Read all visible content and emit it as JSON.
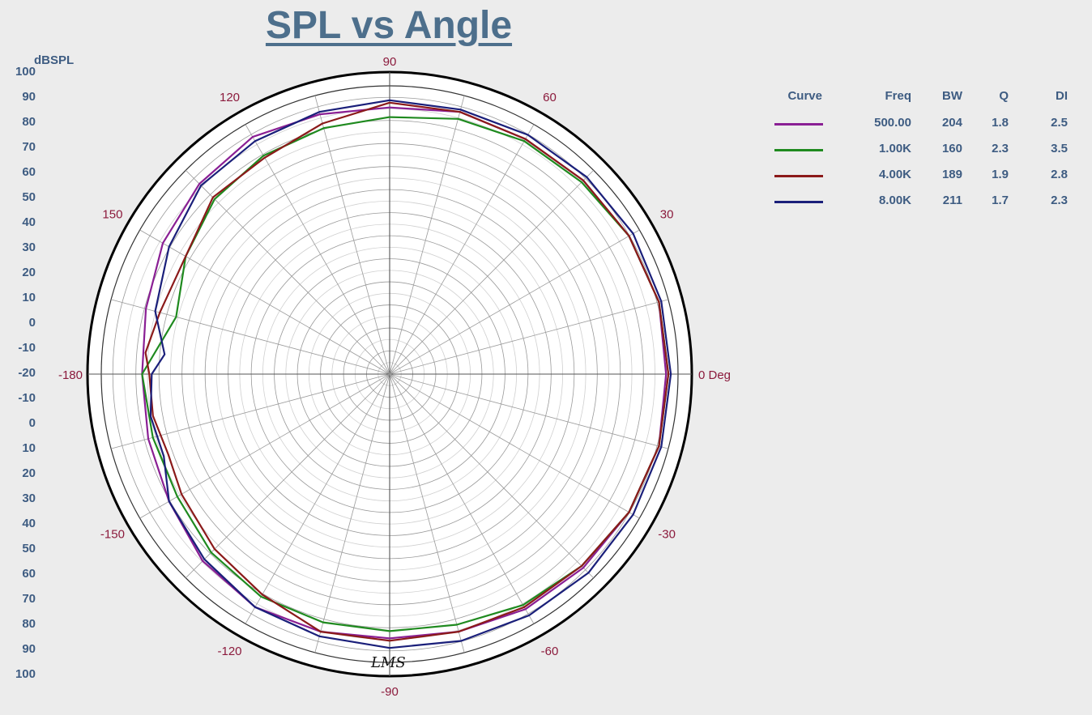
{
  "title": "SPL vs Angle",
  "radial_unit": "dBSPL",
  "radial_scale_top": [
    "100",
    "90",
    "80",
    "70",
    "60",
    "50",
    "40",
    "30",
    "20",
    "10",
    "0",
    "-10",
    "-20"
  ],
  "radial_scale_bottom": [
    "-10",
    "0",
    "10",
    "20",
    "30",
    "40",
    "50",
    "60",
    "70",
    "80",
    "90",
    "100"
  ],
  "angle_labels": [
    {
      "deg": 0,
      "text": "0 Deg"
    },
    {
      "deg": 30,
      "text": "30"
    },
    {
      "deg": 60,
      "text": "60"
    },
    {
      "deg": 90,
      "text": "90"
    },
    {
      "deg": 120,
      "text": "120"
    },
    {
      "deg": 150,
      "text": "150"
    },
    {
      "deg": 180,
      "text": "-180"
    },
    {
      "deg": -150,
      "text": "-150"
    },
    {
      "deg": -120,
      "text": "-120"
    },
    {
      "deg": -90,
      "text": "-90"
    },
    {
      "deg": -60,
      "text": "-60"
    },
    {
      "deg": -30,
      "text": "-30"
    }
  ],
  "legend": {
    "headers": [
      "Curve",
      "Freq",
      "BW",
      "Q",
      "DI"
    ],
    "rows": [
      {
        "freq": "500.00",
        "bw": "204",
        "q": "1.8",
        "di": "2.5",
        "color": "#8a1f94"
      },
      {
        "freq": "1.00K",
        "bw": "160",
        "q": "2.3",
        "di": "3.5",
        "color": "#1f8a1f"
      },
      {
        "freq": "4.00K",
        "bw": "189",
        "q": "1.9",
        "di": "2.8",
        "color": "#8b1a1a"
      },
      {
        "freq": "8.00K",
        "bw": "211",
        "q": "1.7",
        "di": "2.3",
        "color": "#1a1f7a"
      }
    ]
  },
  "signature": "LMS",
  "chart_data": {
    "type": "polar",
    "title": "SPL vs Angle",
    "radial_label": "dBSPL",
    "rlim": [
      -20,
      100
    ],
    "angle_unit": "deg",
    "grid": true,
    "legend_position": "right",
    "series": [
      {
        "name": "500.00",
        "color": "#8a1f94",
        "points": [
          [
            0,
            95
          ],
          [
            15,
            96
          ],
          [
            30,
            95
          ],
          [
            45,
            94
          ],
          [
            60,
            93
          ],
          [
            75,
            93
          ],
          [
            90,
            91
          ],
          [
            105,
            92
          ],
          [
            120,
            94
          ],
          [
            135,
            92
          ],
          [
            150,
            89
          ],
          [
            165,
            85
          ],
          [
            180,
            83
          ],
          [
            -165,
            84
          ],
          [
            -150,
            86
          ],
          [
            -135,
            90
          ],
          [
            -120,
            92
          ],
          [
            -105,
            91
          ],
          [
            -90,
            90
          ],
          [
            -75,
            91
          ],
          [
            -60,
            93
          ],
          [
            -45,
            94
          ],
          [
            -30,
            95
          ],
          [
            -15,
            96
          ]
        ]
      },
      {
        "name": "1.00K",
        "color": "#1f8a1f",
        "points": [
          [
            0,
            96
          ],
          [
            15,
            96
          ],
          [
            30,
            95
          ],
          [
            45,
            93
          ],
          [
            60,
            92
          ],
          [
            75,
            90
          ],
          [
            90,
            87
          ],
          [
            105,
            86
          ],
          [
            120,
            85
          ],
          [
            135,
            83
          ],
          [
            150,
            78
          ],
          [
            165,
            72
          ],
          [
            180,
            83
          ],
          [
            -165,
            82
          ],
          [
            -150,
            82
          ],
          [
            -135,
            85
          ],
          [
            -120,
            87
          ],
          [
            -105,
            87
          ],
          [
            -90,
            87
          ],
          [
            -75,
            88
          ],
          [
            -60,
            91
          ],
          [
            -45,
            93
          ],
          [
            -30,
            95
          ],
          [
            -15,
            96
          ]
        ]
      },
      {
        "name": "4.00K",
        "color": "#8b1a1a",
        "points": [
          [
            0,
            96
          ],
          [
            15,
            96
          ],
          [
            30,
            95
          ],
          [
            45,
            94
          ],
          [
            60,
            93
          ],
          [
            75,
            93
          ],
          [
            90,
            93
          ],
          [
            105,
            88
          ],
          [
            120,
            84
          ],
          [
            135,
            84
          ],
          [
            150,
            78
          ],
          [
            165,
            79
          ],
          [
            175,
            82
          ],
          [
            180,
            80
          ],
          [
            -170,
            80
          ],
          [
            -160,
            78
          ],
          [
            -150,
            80
          ],
          [
            -135,
            83
          ],
          [
            -120,
            86
          ],
          [
            -105,
            91
          ],
          [
            -90,
            91
          ],
          [
            -75,
            91
          ],
          [
            -60,
            92
          ],
          [
            -45,
            93
          ],
          [
            -30,
            95
          ],
          [
            -15,
            96
          ]
        ]
      },
      {
        "name": "8.00K",
        "color": "#1a1f7a",
        "points": [
          [
            0,
            97
          ],
          [
            15,
            97
          ],
          [
            30,
            97
          ],
          [
            45,
            96
          ],
          [
            60,
            95
          ],
          [
            75,
            94
          ],
          [
            90,
            94
          ],
          [
            105,
            93
          ],
          [
            120,
            92
          ],
          [
            135,
            91
          ],
          [
            150,
            86
          ],
          [
            165,
            81
          ],
          [
            175,
            74
          ],
          [
            180,
            79
          ],
          [
            -170,
            81
          ],
          [
            -160,
            80
          ],
          [
            -150,
            86
          ],
          [
            -135,
            89
          ],
          [
            -120,
            92
          ],
          [
            -105,
            93
          ],
          [
            -90,
            94
          ],
          [
            -75,
            95
          ],
          [
            -60,
            96
          ],
          [
            -45,
            97
          ],
          [
            -30,
            97
          ],
          [
            -15,
            97
          ]
        ]
      }
    ]
  }
}
